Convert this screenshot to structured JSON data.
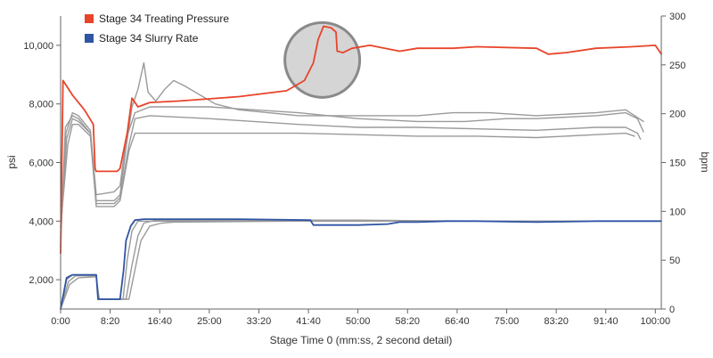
{
  "chart_data": {
    "type": "line",
    "title": "",
    "xlabel": "Stage Time 0 (mm:ss, 2 second detail)",
    "ylabel_left": "psi",
    "ylabel_right": "bpm",
    "x_ticks": [
      "0:00",
      "8:20",
      "16:40",
      "25:00",
      "33:20",
      "41:40",
      "50:00",
      "58:20",
      "66:40",
      "75:00",
      "83:20",
      "91:40",
      "100:00"
    ],
    "x_tick_minutes": [
      0,
      8.333,
      16.667,
      25,
      33.333,
      41.667,
      50,
      58.333,
      66.667,
      75,
      83.333,
      91.667,
      100
    ],
    "xlim": [
      0,
      101
    ],
    "left_ticks": [
      "2,000",
      "4,000",
      "6,000",
      "8,000",
      "10,000"
    ],
    "left_tick_values": [
      2000,
      4000,
      6000,
      8000,
      10000
    ],
    "ylim_left": [
      1000,
      11000
    ],
    "right_ticks": [
      "0",
      "50",
      "100",
      "150",
      "200",
      "250",
      "300"
    ],
    "right_tick_values": [
      0,
      50,
      100,
      150,
      200,
      250,
      300
    ],
    "ylim_right": [
      0,
      300
    ],
    "grid": false,
    "legend_position": "top-left",
    "legend": [
      {
        "label": "Stage 34 Treating Pressure",
        "color": "#e8442a"
      },
      {
        "label": "Stage 34 Slurry Rate",
        "color": "#2f55a4"
      }
    ],
    "annotation": {
      "type": "circle",
      "x": 44,
      "y": 9500,
      "axis": "left"
    },
    "series": [
      {
        "name": "Stage 34 Treating Pressure",
        "axis": "left",
        "color": "#e8442a",
        "points": [
          [
            0.0,
            2900
          ],
          [
            0.4,
            8800
          ],
          [
            2.0,
            8300
          ],
          [
            4.0,
            7800
          ],
          [
            5.5,
            7300
          ],
          [
            5.8,
            5800
          ],
          [
            6.0,
            5700
          ],
          [
            8.0,
            5700
          ],
          [
            9.5,
            5700
          ],
          [
            10.0,
            5800
          ],
          [
            11.2,
            7000
          ],
          [
            12.0,
            8200
          ],
          [
            13.0,
            7900
          ],
          [
            15.0,
            8050
          ],
          [
            20.0,
            8100
          ],
          [
            30.0,
            8250
          ],
          [
            38.0,
            8450
          ],
          [
            41.0,
            8800
          ],
          [
            42.5,
            9400
          ],
          [
            43.3,
            10200
          ],
          [
            44.2,
            10650
          ],
          [
            45.5,
            10600
          ],
          [
            46.3,
            10450
          ],
          [
            46.5,
            9800
          ],
          [
            47.5,
            9750
          ],
          [
            49.0,
            9900
          ],
          [
            52.0,
            10000
          ],
          [
            57.0,
            9800
          ],
          [
            60.0,
            9900
          ],
          [
            66.0,
            9900
          ],
          [
            70.0,
            9950
          ],
          [
            80.0,
            9900
          ],
          [
            82.0,
            9700
          ],
          [
            85.0,
            9750
          ],
          [
            90.0,
            9900
          ],
          [
            96.0,
            9950
          ],
          [
            100.0,
            10000
          ],
          [
            101.0,
            9700
          ]
        ]
      },
      {
        "name": "",
        "axis": "left",
        "color": "#9a9a9a",
        "points": [
          [
            0.0,
            3200
          ],
          [
            0.8,
            7200
          ],
          [
            2.0,
            7600
          ],
          [
            3.0,
            7500
          ],
          [
            5.0,
            7000
          ],
          [
            6.0,
            4700
          ],
          [
            9.0,
            4700
          ],
          [
            10.0,
            4900
          ],
          [
            11.0,
            6500
          ],
          [
            12.0,
            7900
          ],
          [
            13.0,
            8500
          ],
          [
            14.0,
            9400
          ],
          [
            14.7,
            8400
          ],
          [
            16.0,
            8100
          ],
          [
            17.5,
            8500
          ],
          [
            19.0,
            8800
          ],
          [
            21.0,
            8600
          ],
          [
            26.0,
            8000
          ],
          [
            30.0,
            7800
          ],
          [
            40.0,
            7600
          ],
          [
            50.0,
            7600
          ],
          [
            60.0,
            7600
          ],
          [
            66.0,
            7700
          ],
          [
            72.0,
            7700
          ],
          [
            80.0,
            7600
          ],
          [
            90.0,
            7700
          ],
          [
            95.0,
            7800
          ],
          [
            98.0,
            7400
          ]
        ]
      },
      {
        "name": "",
        "axis": "left",
        "color": "#9a9a9a",
        "points": [
          [
            0.0,
            3400
          ],
          [
            0.9,
            7000
          ],
          [
            2.0,
            7700
          ],
          [
            3.0,
            7600
          ],
          [
            5.0,
            7100
          ],
          [
            6.0,
            4900
          ],
          [
            9.0,
            5000
          ],
          [
            10.0,
            5200
          ],
          [
            11.0,
            6800
          ],
          [
            12.5,
            7700
          ],
          [
            15.0,
            7900
          ],
          [
            25.0,
            7900
          ],
          [
            40.0,
            7700
          ],
          [
            50.0,
            7500
          ],
          [
            60.0,
            7400
          ],
          [
            68.0,
            7400
          ],
          [
            75.0,
            7500
          ],
          [
            80.0,
            7500
          ],
          [
            90.0,
            7600
          ],
          [
            95.0,
            7700
          ],
          [
            97.0,
            7500
          ],
          [
            98.0,
            7050
          ]
        ]
      },
      {
        "name": "",
        "axis": "left",
        "color": "#9a9a9a",
        "points": [
          [
            0.0,
            3600
          ],
          [
            1.0,
            6800
          ],
          [
            2.0,
            7500
          ],
          [
            3.0,
            7400
          ],
          [
            5.0,
            7000
          ],
          [
            6.0,
            4600
          ],
          [
            9.0,
            4600
          ],
          [
            10.0,
            4800
          ],
          [
            11.5,
            6600
          ],
          [
            12.5,
            7500
          ],
          [
            15.0,
            7600
          ],
          [
            25.0,
            7500
          ],
          [
            40.0,
            7300
          ],
          [
            50.0,
            7200
          ],
          [
            60.0,
            7200
          ],
          [
            70.0,
            7150
          ],
          [
            80.0,
            7100
          ],
          [
            90.0,
            7200
          ],
          [
            95.0,
            7200
          ],
          [
            97.0,
            7000
          ],
          [
            97.5,
            6800
          ]
        ]
      },
      {
        "name": "",
        "axis": "left",
        "color": "#9a9a9a",
        "points": [
          [
            0.0,
            3800
          ],
          [
            1.2,
            6600
          ],
          [
            2.0,
            7300
          ],
          [
            3.0,
            7300
          ],
          [
            5.0,
            6900
          ],
          [
            6.0,
            4500
          ],
          [
            9.0,
            4500
          ],
          [
            10.0,
            4700
          ],
          [
            11.5,
            6400
          ],
          [
            12.5,
            7000
          ],
          [
            15.0,
            7000
          ],
          [
            25.0,
            7000
          ],
          [
            40.0,
            7000
          ],
          [
            50.0,
            6950
          ],
          [
            60.0,
            6900
          ],
          [
            70.0,
            6900
          ],
          [
            80.0,
            6850
          ],
          [
            90.0,
            6950
          ],
          [
            95.0,
            7000
          ],
          [
            96.5,
            6900
          ]
        ]
      },
      {
        "name": "Stage 34 Slurry Rate",
        "axis": "right",
        "color": "#2f55a4",
        "points": [
          [
            0.0,
            0
          ],
          [
            1.0,
            32
          ],
          [
            2.0,
            35
          ],
          [
            6.0,
            35
          ],
          [
            6.3,
            10
          ],
          [
            10.0,
            10
          ],
          [
            10.6,
            40
          ],
          [
            11.0,
            70
          ],
          [
            11.8,
            85
          ],
          [
            12.5,
            91
          ],
          [
            14.0,
            92
          ],
          [
            30.0,
            92
          ],
          [
            42.0,
            91
          ],
          [
            42.5,
            86
          ],
          [
            50.0,
            86
          ],
          [
            55.0,
            87
          ],
          [
            57.0,
            89
          ],
          [
            60.0,
            89
          ],
          [
            65.0,
            90
          ],
          [
            70.0,
            90
          ],
          [
            80.0,
            89
          ],
          [
            90.0,
            90
          ],
          [
            100.0,
            90
          ],
          [
            101.0,
            90
          ]
        ]
      },
      {
        "name": "",
        "axis": "right",
        "color": "#9a9a9a",
        "points": [
          [
            0.0,
            0
          ],
          [
            1.0,
            30
          ],
          [
            2.0,
            35
          ],
          [
            6.0,
            35
          ],
          [
            6.3,
            10
          ],
          [
            10.5,
            10
          ],
          [
            11.2,
            50
          ],
          [
            12.0,
            80
          ],
          [
            13.0,
            90
          ],
          [
            15.0,
            90
          ],
          [
            45.0,
            90
          ],
          [
            60.0,
            90
          ],
          [
            80.0,
            90
          ],
          [
            101.0,
            90
          ]
        ]
      },
      {
        "name": "",
        "axis": "right",
        "color": "#9a9a9a",
        "points": [
          [
            0.0,
            0
          ],
          [
            1.3,
            28
          ],
          [
            2.5,
            34
          ],
          [
            6.0,
            34
          ],
          [
            6.4,
            10
          ],
          [
            11.0,
            10
          ],
          [
            12.0,
            45
          ],
          [
            13.0,
            75
          ],
          [
            14.0,
            88
          ],
          [
            16.0,
            91
          ],
          [
            50.0,
            91
          ],
          [
            70.0,
            90
          ],
          [
            100.0,
            90
          ]
        ]
      },
      {
        "name": "",
        "axis": "right",
        "color": "#9a9a9a",
        "points": [
          [
            0.0,
            0
          ],
          [
            1.5,
            25
          ],
          [
            3.0,
            32
          ],
          [
            6.0,
            33
          ],
          [
            6.5,
            10
          ],
          [
            11.5,
            10
          ],
          [
            12.5,
            40
          ],
          [
            13.5,
            70
          ],
          [
            15.0,
            85
          ],
          [
            17.0,
            88
          ],
          [
            19.0,
            89
          ],
          [
            40.0,
            90
          ],
          [
            100.0,
            90
          ]
        ]
      }
    ]
  }
}
